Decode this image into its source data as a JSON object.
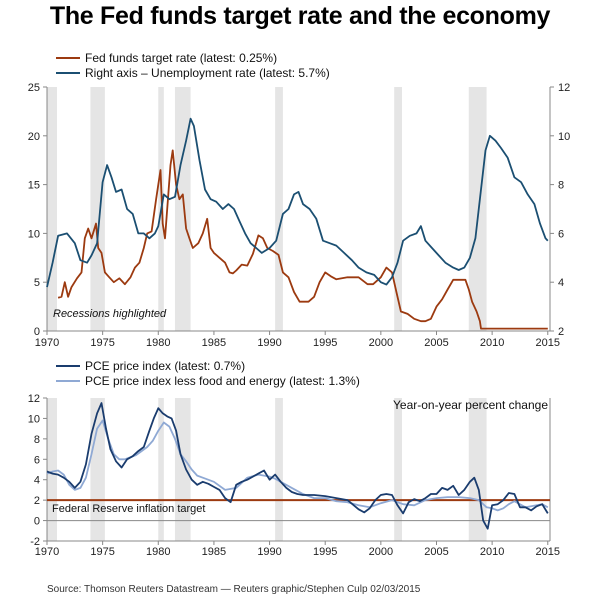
{
  "title": "The Fed funds target rate and the economy",
  "source": "Source: Thomson Reuters Datastream — Reuters graphic/Stephen Culp 02/03/2015",
  "colors": {
    "fed": "#9c3a10",
    "unemp": "#1b4f72",
    "pce": "#1a3c6e",
    "core": "#8fa9d4",
    "target": "#9c3a10",
    "recession": "#e5e5e5",
    "axis": "#888888"
  },
  "chart_data": [
    {
      "type": "line",
      "legend": [
        " Fed funds target rate (latest: 0.25%)",
        "Right axis – Unemployment rate  (latest: 5.7%)"
      ],
      "annotation": "Recessions highlighted",
      "xlim": [
        1970,
        2015.2
      ],
      "ylim_left": [
        0,
        25
      ],
      "ylim_right": [
        2,
        12
      ],
      "x_ticks": [
        "1970",
        "1975",
        "1980",
        "1985",
        "1990",
        "1995",
        "2000",
        "2005",
        "2010",
        "2015"
      ],
      "y_ticks_left": [
        "0",
        "5",
        "10",
        "15",
        "20",
        "25"
      ],
      "y_ticks_right": [
        "2",
        "4",
        "6",
        "8",
        "10",
        "12"
      ],
      "recessions": [
        [
          1970.0,
          1970.9
        ],
        [
          1973.9,
          1975.2
        ],
        [
          1980.0,
          1980.5
        ],
        [
          1981.5,
          1982.9
        ],
        [
          1990.5,
          1991.2
        ],
        [
          2001.2,
          2001.9
        ],
        [
          2007.9,
          2009.5
        ]
      ],
      "series": [
        {
          "name": " Fed funds target rate (latest: 0.25%)",
          "axis": "left",
          "x": [
            1971.0,
            1971.3,
            1971.6,
            1971.9,
            1972.2,
            1972.7,
            1973.1,
            1973.4,
            1973.7,
            1974.0,
            1974.4,
            1974.6,
            1974.9,
            1975.2,
            1975.6,
            1976.0,
            1976.5,
            1977.0,
            1977.5,
            1977.9,
            1978.3,
            1978.7,
            1979.0,
            1979.4,
            1979.8,
            1980.2,
            1980.4,
            1980.6,
            1980.9,
            1981.1,
            1981.3,
            1981.6,
            1981.9,
            1982.2,
            1982.5,
            1982.8,
            1983.1,
            1983.6,
            1984.0,
            1984.4,
            1984.7,
            1985.0,
            1985.5,
            1986.0,
            1986.4,
            1986.7,
            1987.0,
            1987.5,
            1988.0,
            1988.5,
            1989.0,
            1989.4,
            1989.8,
            1990.3,
            1990.8,
            1991.2,
            1991.7,
            1992.2,
            1992.7,
            1993.5,
            1994.0,
            1994.5,
            1995.0,
            1995.5,
            1996.0,
            1997.0,
            1998.0,
            1998.8,
            1999.3,
            2000.0,
            2000.5,
            2001.0,
            2001.4,
            2001.8,
            2002.4,
            2003.0,
            2003.6,
            2004.0,
            2004.5,
            2005.0,
            2005.5,
            2006.0,
            2006.5,
            2007.0,
            2007.6,
            2007.9,
            2008.2,
            2008.6,
            2008.9,
            2009.0,
            2010.0,
            2012.0,
            2014.0,
            2015.0
          ],
          "y": [
            3.4,
            3.5,
            5.0,
            3.5,
            4.5,
            5.4,
            6.0,
            9.5,
            10.5,
            9.5,
            11.0,
            8.5,
            8.0,
            6.0,
            5.5,
            5.0,
            5.4,
            4.8,
            5.5,
            6.5,
            7.0,
            8.5,
            10.0,
            10.2,
            13.5,
            16.5,
            11.0,
            9.5,
            14.0,
            17.0,
            18.5,
            15.0,
            13.5,
            14.0,
            10.5,
            9.5,
            8.5,
            9.0,
            10.0,
            11.5,
            8.5,
            8.0,
            7.5,
            7.0,
            6.0,
            5.9,
            6.2,
            6.8,
            6.7,
            7.9,
            9.8,
            9.5,
            8.5,
            8.2,
            7.8,
            6.0,
            5.5,
            4.0,
            3.0,
            3.0,
            3.5,
            5.0,
            6.0,
            5.6,
            5.3,
            5.5,
            5.5,
            4.8,
            4.8,
            5.5,
            6.5,
            6.0,
            4.0,
            2.0,
            1.75,
            1.25,
            1.0,
            1.0,
            1.25,
            2.5,
            3.25,
            4.25,
            5.25,
            5.25,
            5.25,
            4.25,
            3.0,
            2.0,
            1.0,
            0.25,
            0.25,
            0.25,
            0.25,
            0.25
          ]
        },
        {
          "name": "Right axis – Unemployment rate  (latest: 5.7%)",
          "axis": "right",
          "x": [
            1970.0,
            1970.5,
            1971.0,
            1971.8,
            1972.5,
            1973.0,
            1973.6,
            1974.0,
            1974.5,
            1975.0,
            1975.4,
            1975.8,
            1976.2,
            1976.7,
            1977.2,
            1977.7,
            1978.2,
            1978.7,
            1979.2,
            1979.7,
            1980.0,
            1980.5,
            1981.0,
            1981.5,
            1982.0,
            1982.5,
            1982.9,
            1983.2,
            1983.7,
            1984.2,
            1984.7,
            1985.2,
            1985.8,
            1986.3,
            1986.8,
            1987.3,
            1987.8,
            1988.3,
            1988.8,
            1989.3,
            1990.0,
            1990.6,
            1991.2,
            1991.7,
            1992.2,
            1992.6,
            1993.0,
            1993.6,
            1994.2,
            1994.8,
            1995.4,
            1996.0,
            1996.7,
            1997.4,
            1998.0,
            1998.7,
            1999.4,
            2000.0,
            2000.5,
            2001.0,
            2001.5,
            2002.0,
            2002.6,
            2003.2,
            2003.6,
            2004.0,
            2004.6,
            2005.2,
            2005.8,
            2006.5,
            2007.0,
            2007.5,
            2008.0,
            2008.5,
            2009.0,
            2009.4,
            2009.8,
            2010.3,
            2010.8,
            2011.4,
            2012.0,
            2012.6,
            2013.2,
            2013.8,
            2014.3,
            2014.8,
            2015.0
          ],
          "y": [
            3.8,
            4.8,
            5.9,
            6.0,
            5.6,
            4.9,
            4.8,
            5.1,
            5.6,
            8.1,
            8.8,
            8.3,
            7.7,
            7.8,
            7.0,
            6.8,
            6.0,
            6.0,
            5.8,
            6.0,
            6.3,
            7.6,
            7.4,
            7.5,
            8.8,
            9.8,
            10.7,
            10.4,
            9.0,
            7.8,
            7.4,
            7.3,
            7.0,
            7.2,
            7.0,
            6.5,
            6.0,
            5.6,
            5.4,
            5.2,
            5.4,
            5.7,
            6.8,
            7.0,
            7.6,
            7.7,
            7.2,
            7.0,
            6.6,
            5.7,
            5.6,
            5.5,
            5.2,
            4.9,
            4.6,
            4.4,
            4.3,
            4.0,
            3.9,
            4.2,
            4.8,
            5.7,
            5.9,
            6.0,
            6.3,
            5.7,
            5.4,
            5.1,
            4.8,
            4.6,
            4.5,
            4.6,
            5.0,
            5.8,
            7.8,
            9.4,
            10.0,
            9.8,
            9.5,
            9.1,
            8.3,
            8.1,
            7.6,
            7.2,
            6.4,
            5.8,
            5.7
          ]
        }
      ]
    },
    {
      "type": "line",
      "legend": [
        "PCE price index (latest: 0.7%)",
        "PCE price index less food and energy (latest: 1.3%)"
      ],
      "subtitle": "Year-on-year percent change",
      "target_label": "Federal Reserve inflation target",
      "target_value": 2,
      "xlim": [
        1970,
        2015.2
      ],
      "ylim": [
        -2,
        12
      ],
      "x_ticks": [
        "1970",
        "1975",
        "1980",
        "1985",
        "1990",
        "1995",
        "2000",
        "2005",
        "2010",
        "2015"
      ],
      "y_ticks": [
        "-2",
        "0",
        "2",
        "4",
        "6",
        "8",
        "10",
        "12"
      ],
      "series": [
        {
          "name": "PCE price index (latest: 0.7%)",
          "x": [
            1970.0,
            1970.5,
            1971.0,
            1971.5,
            1972.0,
            1972.5,
            1973.0,
            1973.5,
            1974.0,
            1974.5,
            1974.9,
            1975.3,
            1975.7,
            1976.2,
            1976.7,
            1977.2,
            1977.7,
            1978.2,
            1978.7,
            1979.2,
            1979.6,
            1980.0,
            1980.4,
            1980.8,
            1981.2,
            1981.6,
            1982.0,
            1982.5,
            1983.0,
            1983.5,
            1984.0,
            1984.5,
            1985.0,
            1985.5,
            1986.0,
            1986.5,
            1987.0,
            1987.5,
            1988.0,
            1988.5,
            1989.0,
            1989.5,
            1990.0,
            1990.5,
            1991.0,
            1991.5,
            1992.0,
            1992.5,
            1993.0,
            1994.0,
            1995.0,
            1996.0,
            1997.0,
            1998.0,
            1998.5,
            1999.0,
            1999.5,
            2000.0,
            2000.5,
            2001.0,
            2001.5,
            2002.0,
            2002.5,
            2003.0,
            2003.5,
            2004.0,
            2004.5,
            2005.0,
            2005.5,
            2006.0,
            2006.5,
            2007.0,
            2007.5,
            2008.0,
            2008.4,
            2008.8,
            2009.2,
            2009.6,
            2010.0,
            2010.5,
            2011.0,
            2011.5,
            2012.0,
            2012.5,
            2013.0,
            2013.5,
            2014.0,
            2014.5,
            2015.0
          ],
          "y": [
            4.8,
            4.6,
            4.5,
            4.2,
            3.8,
            3.2,
            3.8,
            5.5,
            8.5,
            10.5,
            11.5,
            9.0,
            7.0,
            5.8,
            5.2,
            6.0,
            6.3,
            6.8,
            7.2,
            8.8,
            10.0,
            11.0,
            10.5,
            10.2,
            10.0,
            8.8,
            6.5,
            5.0,
            4.0,
            3.5,
            3.8,
            3.6,
            3.3,
            3.0,
            2.2,
            1.8,
            3.5,
            3.8,
            4.0,
            4.3,
            4.6,
            4.9,
            4.0,
            4.5,
            3.8,
            3.2,
            2.8,
            2.6,
            2.5,
            2.5,
            2.4,
            2.2,
            2.0,
            1.1,
            0.8,
            1.2,
            2.0,
            2.5,
            2.6,
            2.5,
            1.5,
            0.7,
            1.8,
            2.1,
            1.9,
            2.2,
            2.6,
            2.6,
            3.2,
            3.0,
            3.4,
            2.5,
            3.0,
            3.8,
            4.2,
            3.0,
            0.0,
            -0.8,
            1.5,
            1.6,
            2.0,
            2.7,
            2.6,
            1.3,
            1.3,
            1.0,
            1.4,
            1.6,
            0.7
          ]
        },
        {
          "name": "PCE price index less food and energy (latest: 1.3%)",
          "x": [
            1970.0,
            1970.5,
            1971.0,
            1971.5,
            1972.0,
            1972.5,
            1973.0,
            1973.5,
            1974.0,
            1974.5,
            1975.0,
            1975.5,
            1976.0,
            1976.5,
            1977.0,
            1977.5,
            1978.0,
            1978.5,
            1979.0,
            1979.5,
            1980.0,
            1980.5,
            1981.0,
            1981.5,
            1982.0,
            1982.5,
            1983.0,
            1983.5,
            1984.0,
            1985.0,
            1986.0,
            1987.0,
            1988.0,
            1989.0,
            1990.0,
            1990.5,
            1991.0,
            1992.0,
            1993.0,
            1994.0,
            1995.0,
            1996.0,
            1997.0,
            1998.0,
            1999.0,
            2000.0,
            2001.0,
            2002.0,
            2003.0,
            2004.0,
            2005.0,
            2006.0,
            2007.0,
            2008.0,
            2008.8,
            2009.5,
            2010.0,
            2010.5,
            2011.0,
            2011.5,
            2012.0,
            2013.0,
            2014.0,
            2014.5,
            2015.0
          ],
          "y": [
            4.6,
            4.8,
            4.9,
            4.5,
            3.5,
            3.0,
            3.2,
            4.2,
            6.5,
            9.0,
            9.8,
            8.0,
            6.5,
            6.0,
            6.0,
            6.2,
            6.4,
            6.8,
            7.2,
            7.8,
            8.8,
            9.6,
            9.2,
            8.0,
            6.5,
            5.8,
            5.0,
            4.4,
            4.2,
            3.8,
            3.0,
            3.2,
            4.2,
            4.5,
            4.3,
            4.1,
            3.8,
            3.2,
            2.6,
            2.2,
            2.2,
            1.9,
            1.8,
            1.5,
            1.3,
            1.7,
            2.0,
            1.6,
            1.5,
            2.0,
            2.2,
            2.3,
            2.3,
            2.2,
            2.0,
            1.3,
            1.2,
            1.0,
            1.2,
            1.6,
            1.9,
            1.3,
            1.5,
            1.6,
            1.3
          ]
        }
      ]
    }
  ]
}
